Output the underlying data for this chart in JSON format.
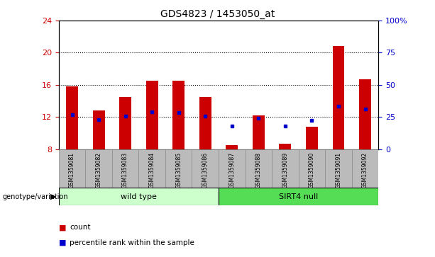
{
  "title": "GDS4823 / 1453050_at",
  "samples": [
    "GSM1359081",
    "GSM1359082",
    "GSM1359083",
    "GSM1359084",
    "GSM1359085",
    "GSM1359086",
    "GSM1359087",
    "GSM1359088",
    "GSM1359089",
    "GSM1359090",
    "GSM1359091",
    "GSM1359092"
  ],
  "count_values": [
    15.8,
    12.8,
    14.5,
    16.5,
    16.5,
    14.5,
    8.5,
    12.2,
    8.7,
    10.8,
    20.8,
    16.7
  ],
  "percentile_values": [
    12.3,
    11.7,
    12.1,
    12.6,
    12.5,
    12.1,
    10.9,
    11.8,
    10.9,
    11.6,
    13.3,
    13.0
  ],
  "ymin": 8,
  "ymax": 24,
  "yticks": [
    8,
    12,
    16,
    20,
    24
  ],
  "y2min": 0,
  "y2max": 100,
  "y2ticks": [
    0,
    25,
    50,
    75,
    100
  ],
  "y2ticklabels": [
    "0",
    "25",
    "50",
    "75",
    "100%"
  ],
  "bar_color": "#cc0000",
  "dot_color": "#0000cc",
  "bar_bottom": 8,
  "groups": [
    {
      "label": "wild type",
      "start": 0,
      "end": 5,
      "color": "#ccffcc"
    },
    {
      "label": "SIRT4 null",
      "start": 6,
      "end": 11,
      "color": "#55dd55"
    }
  ],
  "group_row_label": "genotype/variation",
  "tick_color_left": "#cc0000",
  "tick_color_right": "#0000cc",
  "bg_color": "#ffffff",
  "plot_bg": "#ffffff",
  "xticklabel_bg": "#bbbbbb"
}
